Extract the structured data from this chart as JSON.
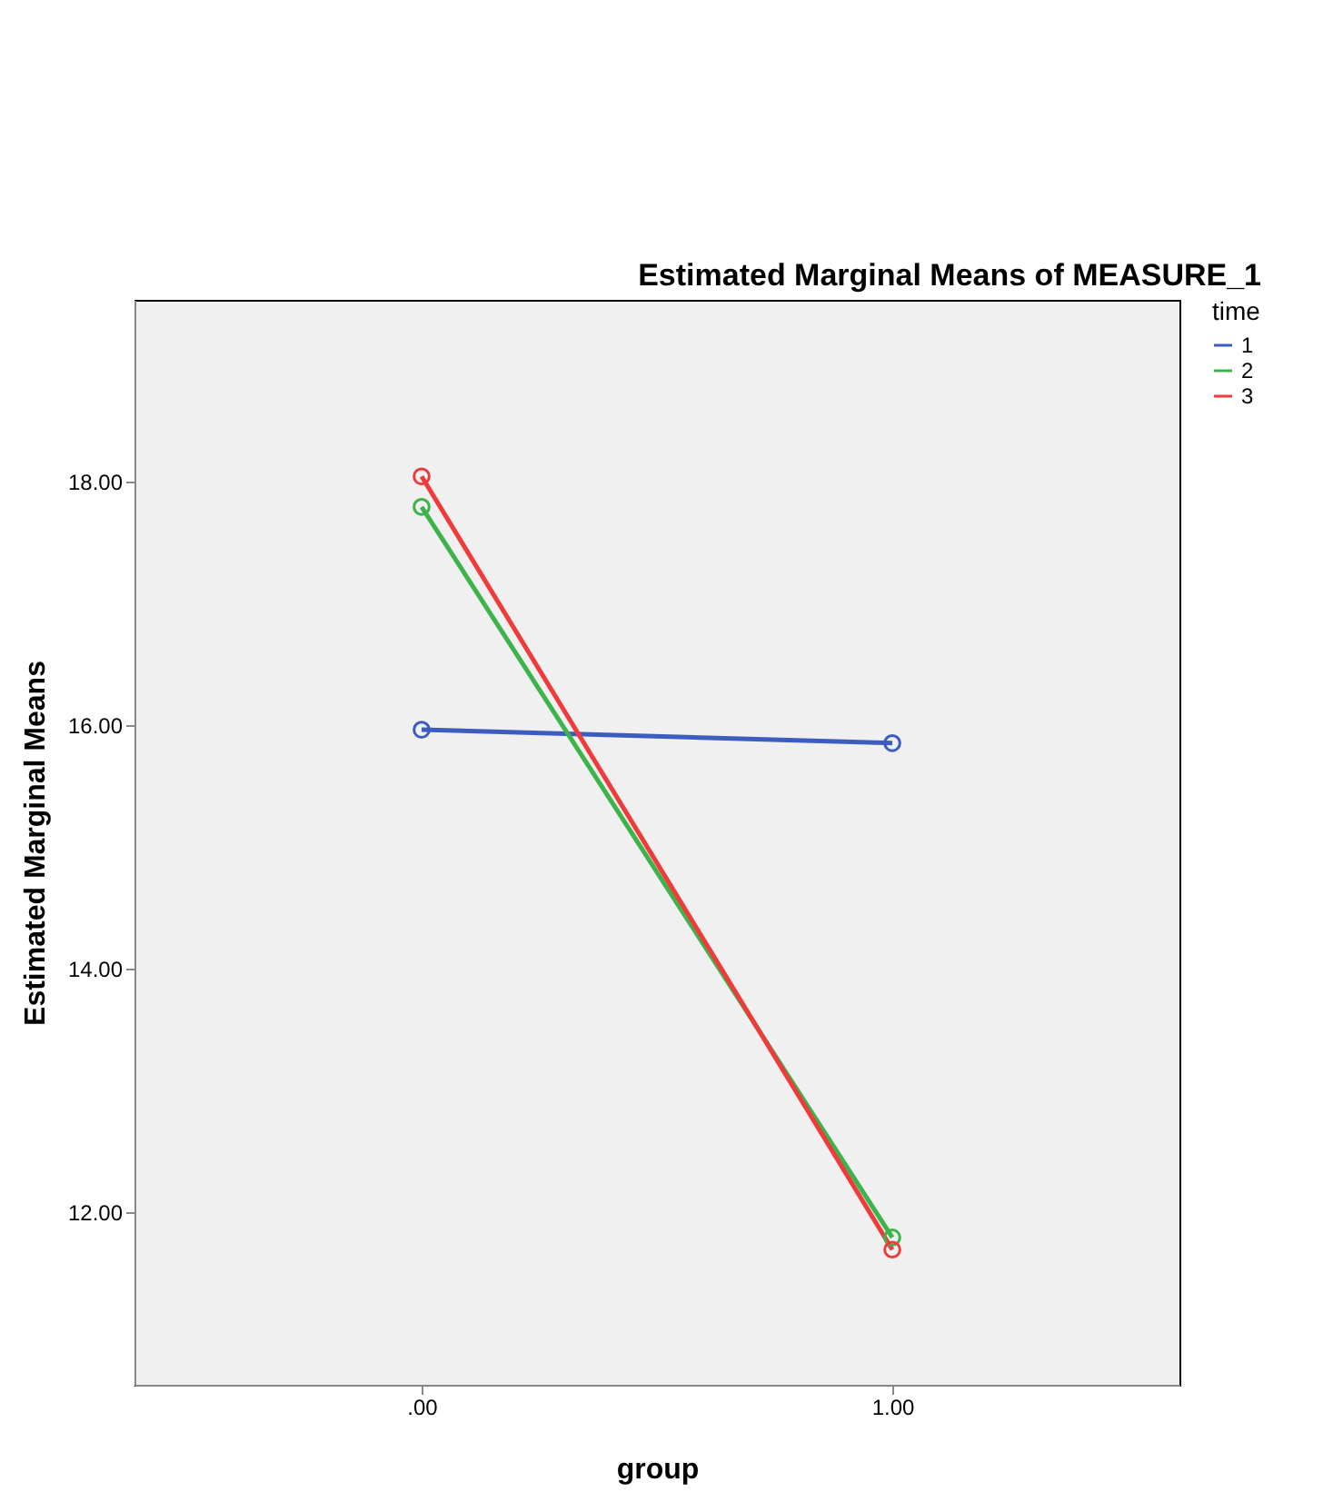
{
  "chart_data": {
    "type": "line",
    "title": "Estimated Marginal Means of MEASURE_1",
    "xlabel": "group",
    "ylabel": "Estimated Marginal Means",
    "legend_title": "time",
    "x": [
      0,
      1
    ],
    "series": [
      {
        "name": "1",
        "color": "#3c5cc0",
        "values": [
          15.96,
          15.85
        ]
      },
      {
        "name": "2",
        "color": "#3cb44b",
        "values": [
          17.79,
          11.79
        ]
      },
      {
        "name": "3",
        "color": "#ee3b3b",
        "values": [
          18.04,
          11.69
        ]
      }
    ],
    "xlim": [
      -0.61,
      1.61
    ],
    "xticks": [
      {
        "value": 0,
        "label": ".00"
      },
      {
        "value": 1,
        "label": "1.00"
      }
    ],
    "ylim": [
      10.58,
      19.49
    ],
    "yticks": [
      {
        "value": 12,
        "label": "12.00"
      },
      {
        "value": 14,
        "label": "14.00"
      },
      {
        "value": 16,
        "label": "16.00"
      },
      {
        "value": 18,
        "label": "18.00"
      }
    ],
    "grid": false,
    "legend": "top right",
    "marker": "circle",
    "line_style": "solid"
  }
}
